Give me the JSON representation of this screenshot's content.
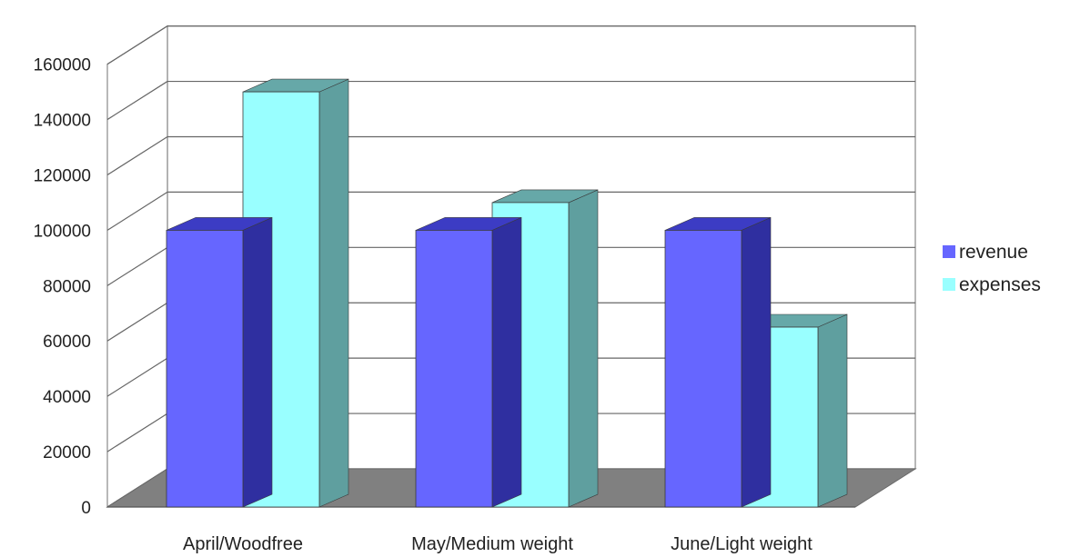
{
  "chart_data": {
    "type": "bar",
    "categories": [
      "April/Woodfree",
      "May/Medium weight",
      "June/Light weight"
    ],
    "series": [
      {
        "name": "revenue",
        "values": [
          100000,
          100000,
          100000
        ]
      },
      {
        "name": "expenses",
        "values": [
          150000,
          110000,
          65000
        ]
      }
    ],
    "ylim": [
      0,
      160000
    ],
    "ytick_step": 20000,
    "ytick_labels": [
      "0",
      "20000",
      "40000",
      "60000",
      "80000",
      "100000",
      "120000",
      "140000",
      "160000"
    ],
    "grid": true,
    "legend_position": "right",
    "three_d": true,
    "colors": {
      "revenue": "#6666ff",
      "revenue_side": "#2f2fa0",
      "revenue_top": "#3c3cc4",
      "expenses": "#99ffff",
      "expenses_side": "#5f9f9f",
      "expenses_top": "#66a8a8",
      "floor": "#808080",
      "gridline": "#666666"
    }
  }
}
